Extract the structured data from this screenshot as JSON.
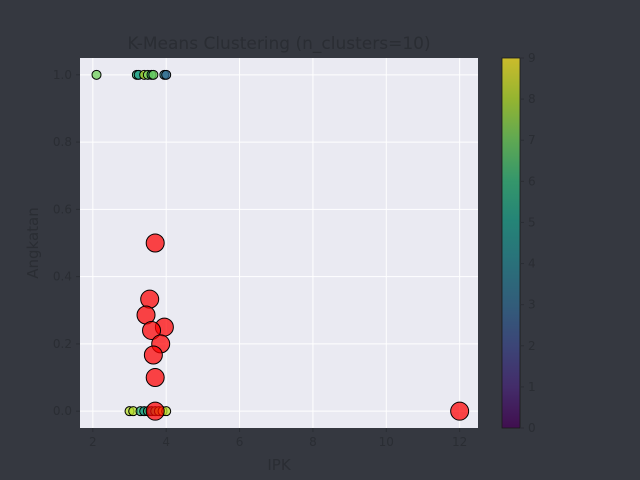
{
  "chart_data": {
    "type": "scatter",
    "title": "K-Means Clustering (n_clusters=10)",
    "xlabel": "IPK",
    "ylabel": "Angkatan",
    "xlim": [
      1.65,
      12.5
    ],
    "ylim": [
      -0.05,
      1.05
    ],
    "xticks": [
      "2",
      "4",
      "6",
      "8",
      "10",
      "12"
    ],
    "yticks": [
      "0.0",
      "0.2",
      "0.4",
      "0.6",
      "0.8",
      "1.0"
    ],
    "grid": true,
    "colormap": "viridis",
    "colorbar": {
      "min": 0,
      "max": 9,
      "ticks": [
        "0",
        "1",
        "2",
        "3",
        "4",
        "5",
        "6",
        "7",
        "8",
        "9"
      ]
    },
    "background_color": "#eaeaf2",
    "centroid_color": "#ff0000",
    "points": [
      {
        "x": 2.1,
        "y": 1.0,
        "c": 7
      },
      {
        "x": 3.2,
        "y": 1.0,
        "c": 6
      },
      {
        "x": 3.25,
        "y": 1.0,
        "c": 5
      },
      {
        "x": 3.4,
        "y": 1.0,
        "c": 8
      },
      {
        "x": 3.5,
        "y": 1.0,
        "c": 7
      },
      {
        "x": 3.6,
        "y": 1.0,
        "c": 6
      },
      {
        "x": 3.65,
        "y": 1.0,
        "c": 7
      },
      {
        "x": 3.95,
        "y": 1.0,
        "c": 4
      },
      {
        "x": 4.0,
        "y": 1.0,
        "c": 3
      },
      {
        "x": 3.0,
        "y": 0.0,
        "c": 8
      },
      {
        "x": 3.1,
        "y": 0.0,
        "c": 8
      },
      {
        "x": 3.3,
        "y": 0.0,
        "c": 6
      },
      {
        "x": 3.4,
        "y": 0.0,
        "c": 5
      },
      {
        "x": 3.5,
        "y": 0.0,
        "c": 6
      },
      {
        "x": 3.6,
        "y": 0.0,
        "c": 5
      },
      {
        "x": 3.7,
        "y": 0.0,
        "c": 7
      },
      {
        "x": 3.8,
        "y": 0.0,
        "c": 8
      },
      {
        "x": 3.9,
        "y": 0.0,
        "c": 9
      },
      {
        "x": 4.0,
        "y": 0.0,
        "c": 8
      }
    ],
    "centroids": [
      {
        "x": 3.7,
        "y": 0.5
      },
      {
        "x": 3.55,
        "y": 0.333
      },
      {
        "x": 3.45,
        "y": 0.286
      },
      {
        "x": 3.95,
        "y": 0.25
      },
      {
        "x": 3.6,
        "y": 0.24
      },
      {
        "x": 3.85,
        "y": 0.2
      },
      {
        "x": 3.65,
        "y": 0.167
      },
      {
        "x": 3.7,
        "y": 0.1
      },
      {
        "x": 3.7,
        "y": 0.0
      },
      {
        "x": 12.0,
        "y": 0.0
      }
    ]
  }
}
